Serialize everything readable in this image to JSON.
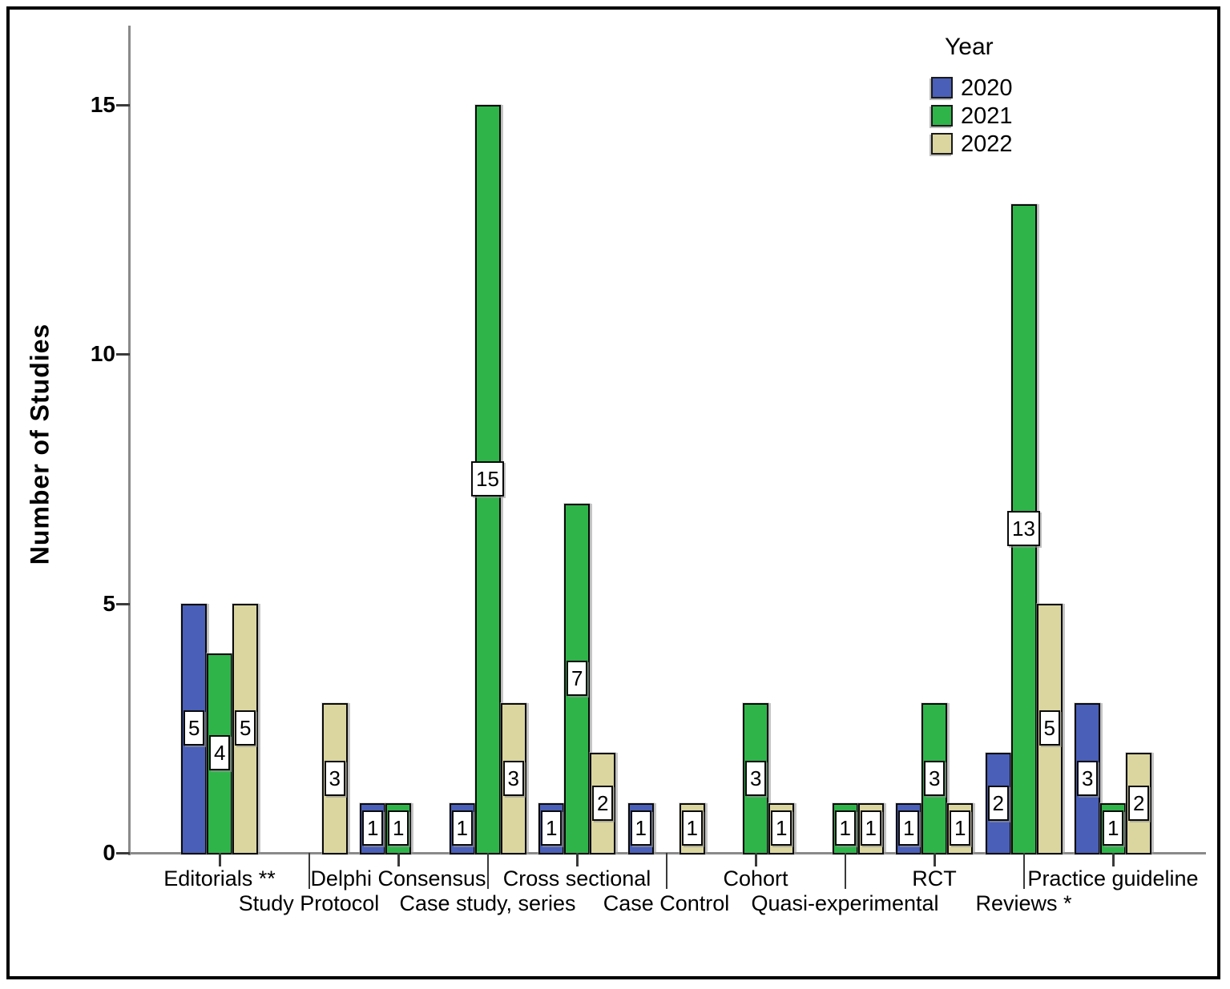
{
  "chart_data": {
    "type": "bar",
    "title": "",
    "ylabel": "Number of Studies",
    "xlabel": "",
    "yticks": [
      0,
      5,
      10,
      15
    ],
    "ylim": [
      0,
      16.6
    ],
    "grid": false,
    "legend": {
      "title": "Year",
      "position": "top-right",
      "entries": [
        "2020",
        "2021",
        "2022"
      ]
    },
    "categories": [
      "Editorials **",
      "Study Protocol",
      "Delphi Consensus",
      "Case study, series",
      "Cross sectional",
      "Case Control",
      "Cohort",
      "Quasi-experimental",
      "RCT",
      "Reviews *",
      "Practice guideline"
    ],
    "category_label_row": [
      1,
      2,
      1,
      2,
      1,
      2,
      1,
      2,
      1,
      2,
      1
    ],
    "series": [
      {
        "name": "2020",
        "color": "#4A5FB8",
        "values": [
          5,
          null,
          1,
          1,
          1,
          1,
          null,
          null,
          1,
          2,
          3
        ]
      },
      {
        "name": "2021",
        "color": "#2FB44A",
        "values": [
          4,
          null,
          1,
          15,
          7,
          null,
          3,
          1,
          3,
          13,
          1
        ]
      },
      {
        "name": "2022",
        "color": "#DBD6A0",
        "values": [
          5,
          3,
          null,
          3,
          2,
          1,
          1,
          1,
          1,
          5,
          2
        ]
      }
    ],
    "bar_value_labels": true,
    "axis_color": "#8a8a8a",
    "text_color": "#000000"
  }
}
